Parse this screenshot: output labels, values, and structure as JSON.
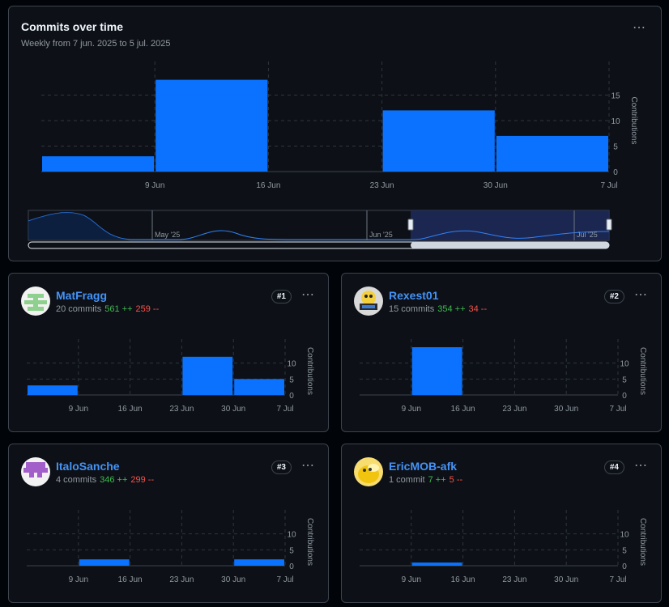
{
  "main": {
    "title": "Commits over time",
    "subtitle": "Weekly from 7 jun. 2025 to 5 jul. 2025",
    "menu": "⋯",
    "navigator_labels": [
      "May '25",
      "Jun '25",
      "Jul '25"
    ]
  },
  "chart_data": [
    {
      "type": "bar",
      "title": "Commits over time",
      "categories": [
        "2025-06-07",
        "2025-06-14",
        "2025-06-21",
        "2025-06-28",
        "2025-07-05"
      ],
      "x_tick_labels": [
        "9 Jun",
        "16 Jun",
        "23 Jun",
        "30 Jun",
        "7 Jul"
      ],
      "values": [
        3,
        18,
        0,
        12,
        7
      ],
      "ylabel": "Contributions",
      "y_ticks": [
        0,
        5,
        10,
        15
      ],
      "ylim": [
        0,
        20
      ],
      "grid": true,
      "color": "#0a72ff"
    },
    {
      "type": "bar",
      "title": "MatFragg",
      "categories": [
        "2025-06-07",
        "2025-06-14",
        "2025-06-21",
        "2025-06-28",
        "2025-07-05"
      ],
      "x_tick_labels": [
        "9 Jun",
        "16 Jun",
        "23 Jun",
        "30 Jun",
        "7 Jul"
      ],
      "values": [
        3,
        0,
        0,
        12,
        5
      ],
      "ylabel": "Contributions",
      "y_ticks": [
        0,
        5,
        10
      ],
      "ylim": [
        0,
        15
      ]
    },
    {
      "type": "bar",
      "title": "Rexest01",
      "categories": [
        "2025-06-07",
        "2025-06-14",
        "2025-06-21",
        "2025-06-28",
        "2025-07-05"
      ],
      "x_tick_labels": [
        "9 Jun",
        "16 Jun",
        "23 Jun",
        "30 Jun",
        "7 Jul"
      ],
      "values": [
        0,
        15,
        0,
        0,
        0
      ],
      "ylabel": "Contributions",
      "y_ticks": [
        0,
        5,
        10
      ],
      "ylim": [
        0,
        15
      ]
    },
    {
      "type": "bar",
      "title": "ItaloSanche",
      "categories": [
        "2025-06-07",
        "2025-06-14",
        "2025-06-21",
        "2025-06-28",
        "2025-07-05"
      ],
      "x_tick_labels": [
        "9 Jun",
        "16 Jun",
        "23 Jun",
        "30 Jun",
        "7 Jul"
      ],
      "values": [
        0,
        2,
        0,
        0,
        2
      ],
      "ylabel": "Contributions",
      "y_ticks": [
        0,
        5,
        10
      ],
      "ylim": [
        0,
        15
      ]
    },
    {
      "type": "bar",
      "title": "EricMOB-afk",
      "categories": [
        "2025-06-07",
        "2025-06-14",
        "2025-06-21",
        "2025-06-28",
        "2025-07-05"
      ],
      "x_tick_labels": [
        "9 Jun",
        "16 Jun",
        "23 Jun",
        "30 Jun",
        "7 Jul"
      ],
      "values": [
        0,
        1,
        0,
        0,
        0
      ],
      "ylabel": "Contributions",
      "y_ticks": [
        0,
        5,
        10
      ],
      "ylim": [
        0,
        15
      ]
    }
  ],
  "contributors": [
    {
      "name": "MatFragg",
      "commits": "20 commits",
      "additions": "561 ++",
      "deletions": "259 --",
      "rank": "#1",
      "menu": "⋯",
      "avatar_color": "#8ed18e"
    },
    {
      "name": "Rexest01",
      "commits": "15 commits",
      "additions": "354 ++",
      "deletions": "34 --",
      "rank": "#2",
      "menu": "⋯",
      "avatar_color": "#c9c9c9"
    },
    {
      "name": "ItaloSanche",
      "commits": "4 commits",
      "additions": "346 ++",
      "deletions": "299 --",
      "rank": "#3",
      "menu": "⋯",
      "avatar_color": "#a35fc9"
    },
    {
      "name": "EricMOB-afk",
      "commits": "1 commit",
      "additions": "7 ++",
      "deletions": "5 --",
      "rank": "#4",
      "menu": "⋯",
      "avatar_color": "#f1c40f"
    }
  ],
  "colors": {
    "bar": "#0a72ff",
    "grid": "#2f353d",
    "axis_text": "#9198a1",
    "link": "#4493f8",
    "add": "#3fb950",
    "del": "#f85149"
  }
}
